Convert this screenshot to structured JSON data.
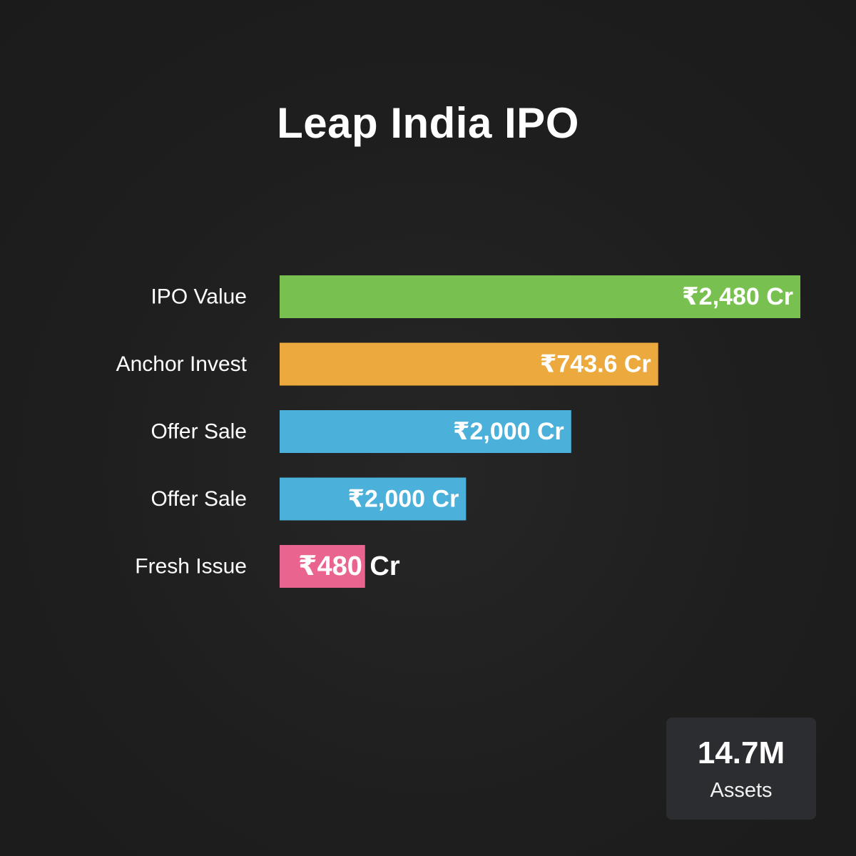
{
  "chart_data": {
    "type": "bar",
    "orientation": "horizontal",
    "title": "Leap India IPO",
    "categories": [
      "IPO Value",
      "Anchor Invest",
      "Offer Sale",
      "Offer Sale",
      "Fresh Issue"
    ],
    "values": [
      2480,
      743.6,
      2000,
      2000,
      480
    ],
    "value_labels": [
      "₹2,480 Cr",
      "₹743.6 Cr",
      "₹2,000 Cr",
      "₹2,000 Cr",
      "₹480 Cr"
    ],
    "display_fraction": [
      1.0,
      0.727,
      0.56,
      0.358,
      0.164
    ],
    "colors": [
      "#78c150",
      "#ecaa3e",
      "#4bb0da",
      "#4bb0da",
      "#e9648f"
    ],
    "xlabel": "",
    "ylabel": ""
  },
  "stat": {
    "value": "14.7M",
    "label": "Assets"
  }
}
